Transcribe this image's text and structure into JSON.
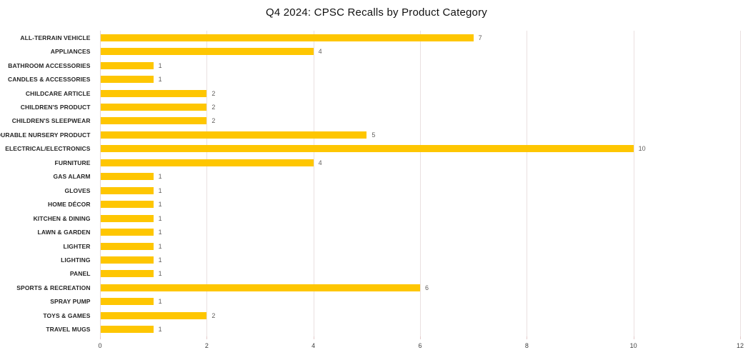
{
  "title": "Q4 2024: CPSC Recalls by Product Category",
  "chart_data": {
    "type": "bar",
    "orientation": "horizontal",
    "title": "Q4 2024: CPSC Recalls by Product Category",
    "categories": [
      "ALL-TERRAIN VEHICLE",
      "APPLIANCES",
      "BATHROOM ACCESSORIES",
      "CANDLES & ACCESSORIES",
      "CHILDCARE ARTICLE",
      "CHILDREN'S PRODUCT",
      "CHILDREN'S SLEEPWEAR",
      "DURABLE NURSERY PRODUCT",
      "ELECTRICAL/ELECTRONICS",
      "FURNITURE",
      "GAS ALARM",
      "GLOVES",
      "HOME DÉCOR",
      "KITCHEN & DINING",
      "LAWN & GARDEN",
      "LIGHTER",
      "LIGHTING",
      "PANEL",
      "SPORTS & RECREATION",
      "SPRAY PUMP",
      "TOYS & GAMES",
      "TRAVEL MUGS"
    ],
    "values": [
      7,
      4,
      1,
      1,
      2,
      2,
      2,
      5,
      10,
      4,
      1,
      1,
      1,
      1,
      1,
      1,
      1,
      1,
      6,
      1,
      2,
      1
    ],
    "xlabel": "",
    "ylabel": "",
    "xlim": [
      0,
      12
    ],
    "x_ticks": [
      0,
      2,
      4,
      6,
      8,
      10,
      12
    ],
    "grid": true,
    "legend": false,
    "data_labels": true,
    "colors": {
      "bar": "#FEC601",
      "gridline": "#EAE0E0",
      "axis_line": "#E3D6D6",
      "tick_mark": "#E3C9C9",
      "value_label": "#605E5C",
      "category_label": "#262626",
      "tick_label": "#404040",
      "title": "#111111",
      "background": "#FFFFFF"
    }
  }
}
